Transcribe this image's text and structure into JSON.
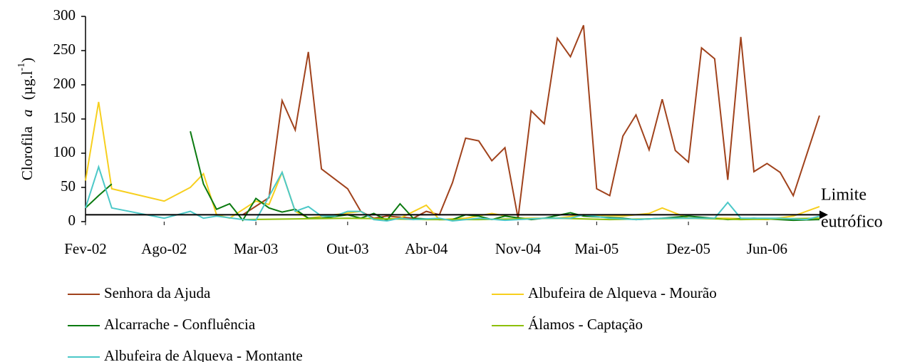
{
  "chart_data": {
    "type": "line",
    "ylabel": [
      "Clorofila",
      "a",
      "(µg.l",
      "-1",
      ")"
    ],
    "ylim": [
      0,
      300
    ],
    "yticks": [
      0,
      50,
      100,
      150,
      200,
      250,
      300
    ],
    "xlim": [
      "2002-02",
      "2006-10"
    ],
    "xticks": [
      {
        "value": "2002-02",
        "label": "Fev-02"
      },
      {
        "value": "2002-08",
        "label": "Ago-02"
      },
      {
        "value": "2003-03",
        "label": "Mar-03"
      },
      {
        "value": "2003-10",
        "label": "Out-03"
      },
      {
        "value": "2004-04",
        "label": "Abr-04"
      },
      {
        "value": "2004-11",
        "label": "Nov-04"
      },
      {
        "value": "2005-05",
        "label": "Mai-05"
      },
      {
        "value": "2005-12",
        "label": "Dez-05"
      },
      {
        "value": "2006-06",
        "label": "Jun-06"
      }
    ],
    "threshold": 10,
    "threshold_label": [
      "Limite",
      "eutrófico"
    ],
    "series": [
      {
        "name": "Senhora da Ajuda",
        "color": "#a0421c",
        "x": [
          "2003-02",
          "2003-04",
          "2003-05",
          "2003-06",
          "2003-07",
          "2003-08",
          "2003-10",
          "2003-11",
          "2003-12",
          "2004-01",
          "2004-03",
          "2004-04",
          "2004-05",
          "2004-06",
          "2004-07",
          "2004-08",
          "2004-09",
          "2004-10",
          "2004-11",
          "2004-12",
          "2005-01",
          "2005-02",
          "2005-03",
          "2005-04",
          "2005-05",
          "2005-06",
          "2005-07",
          "2005-08",
          "2005-09",
          "2005-10",
          "2005-11",
          "2005-12",
          "2006-01",
          "2006-02",
          "2006-03",
          "2006-04",
          "2006-05",
          "2006-06",
          "2006-07",
          "2006-08",
          "2006-10"
        ],
        "values": [
          10,
          35,
          177,
          134,
          248,
          77,
          48,
          15,
          5,
          8,
          5,
          15,
          10,
          57,
          122,
          118,
          89,
          108,
          5,
          162,
          143,
          268,
          241,
          287,
          48,
          38,
          125,
          156,
          105,
          179,
          104,
          87,
          254,
          238,
          61,
          270,
          73,
          85,
          72,
          38,
          155
        ]
      },
      {
        "name": "Albufeira de Alqueva - Mourão",
        "color": "#f7cf1e",
        "x": [
          "2002-02",
          "2002-03",
          "2002-04",
          "2002-08",
          "2002-10",
          "2002-11",
          "2002-12",
          "2003-01",
          "2003-03",
          "2003-04",
          "2003-05",
          "2003-06",
          "2003-07",
          "2003-09",
          "2003-11",
          "2003-12",
          "2004-02",
          "2004-04",
          "2004-05",
          "2004-07",
          "2004-09",
          "2004-11",
          "2005-02",
          "2005-04",
          "2005-07",
          "2005-09",
          "2005-10",
          "2005-12",
          "2006-03",
          "2006-06",
          "2006-08",
          "2006-10"
        ],
        "values": [
          60,
          175,
          48,
          30,
          50,
          70,
          10,
          5,
          30,
          25,
          72,
          15,
          5,
          10,
          15,
          3,
          5,
          24,
          3,
          5,
          12,
          5,
          5,
          10,
          8,
          12,
          20,
          5,
          5,
          3,
          8,
          22
        ]
      },
      {
        "name": "Alcarrache - Confluência",
        "color": "#0b7a10",
        "x": [
          "2002-02",
          "2002-03",
          "2002-04",
          "2002-05",
          "2002-10",
          "2002-11",
          "2002-12",
          "2003-01",
          "2003-02",
          "2003-03",
          "2003-04",
          "2003-05",
          "2003-06",
          "2003-07",
          "2003-08",
          "2003-10",
          "2003-11",
          "2003-12",
          "2004-01",
          "2004-02",
          "2004-03",
          "2004-05",
          "2004-06",
          "2004-07",
          "2004-08",
          "2004-09",
          "2004-10",
          "2004-12",
          "2005-01",
          "2005-03",
          "2005-04",
          "2005-07",
          "2005-08",
          "2005-10",
          "2005-12",
          "2006-03",
          "2006-05",
          "2006-08",
          "2006-10"
        ],
        "values": [
          20,
          38,
          55,
          null,
          132,
          55,
          18,
          26,
          2,
          34,
          20,
          14,
          18,
          5,
          5,
          10,
          5,
          12,
          2,
          26,
          5,
          3,
          3,
          10,
          8,
          3,
          8,
          3,
          5,
          13,
          8,
          5,
          3,
          5,
          8,
          3,
          5,
          2,
          3
        ]
      },
      {
        "name": "Álamos - Captação",
        "color": "#8cbf0a",
        "x": [
          "2003-02",
          "2003-10",
          "2004-04",
          "2004-08",
          "2005-02",
          "2005-06",
          "2005-12",
          "2006-04",
          "2006-10"
        ],
        "values": [
          3,
          5,
          3,
          3,
          5,
          3,
          5,
          3,
          5
        ]
      },
      {
        "name": "Albufeira de Alqueva - Montante",
        "color": "#4cc8c8",
        "x": [
          "2002-02",
          "2002-03",
          "2002-04",
          "2002-08",
          "2002-10",
          "2002-11",
          "2002-12",
          "2003-02",
          "2003-03",
          "2003-05",
          "2003-06",
          "2003-07",
          "2003-08",
          "2003-09",
          "2003-10",
          "2003-11",
          "2003-12",
          "2004-01",
          "2004-02",
          "2004-03",
          "2004-05",
          "2004-06",
          "2004-08",
          "2004-10",
          "2005-01",
          "2005-03",
          "2005-04",
          "2005-06",
          "2005-08",
          "2005-10",
          "2006-01",
          "2006-02",
          "2006-03",
          "2006-04",
          "2006-07",
          "2006-09",
          "2006-10"
        ],
        "values": [
          20,
          80,
          20,
          5,
          15,
          5,
          8,
          3,
          2,
          72,
          15,
          22,
          8,
          8,
          15,
          15,
          3,
          1,
          5,
          3,
          5,
          1,
          5,
          2,
          5,
          5,
          10,
          5,
          3,
          5,
          5,
          5,
          28,
          5,
          5,
          3,
          8
        ]
      }
    ]
  }
}
